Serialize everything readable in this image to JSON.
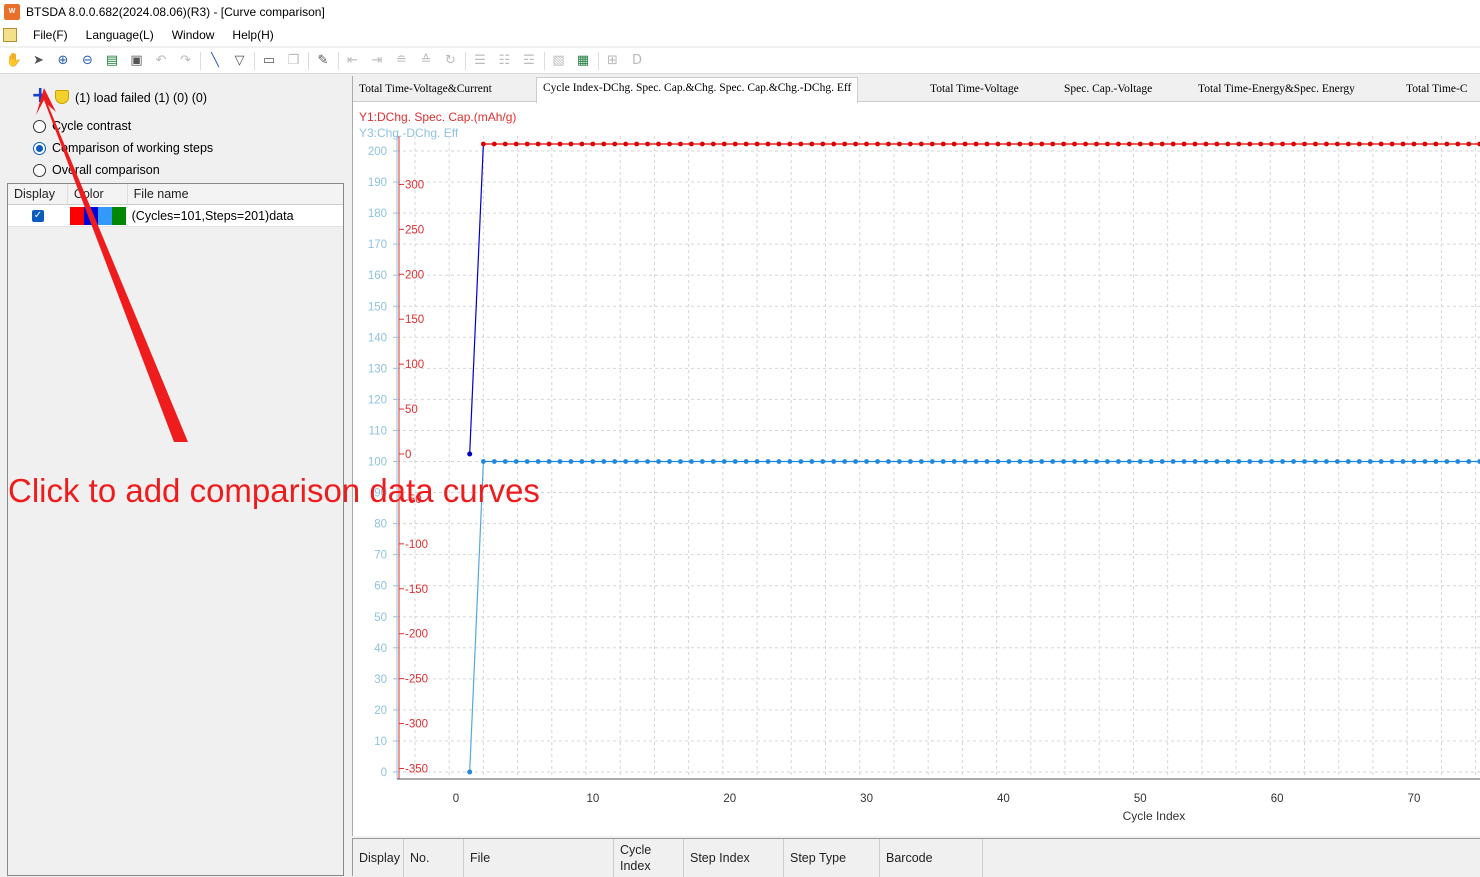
{
  "window": {
    "title": "BTSDA 8.0.0.682(2024.08.06)(R3) - [Curve comparison]",
    "app_icon": "app-logo-icon"
  },
  "menu": [
    "File(F)",
    "Language(L)",
    "Window",
    "Help(H)"
  ],
  "toolbar": {
    "icons": [
      "hand-icon",
      "pointer-icon",
      "zoom-in-icon",
      "zoom-out-icon",
      "rst-icon",
      "export-icon",
      "undo-icon",
      "redo-icon",
      "line-tool-icon",
      "filter-icon",
      "open-folder-icon",
      "save-icon",
      "wrench-icon",
      "arrow-left-icon",
      "arrow-right-icon",
      "step-icon",
      "step-alt-icon",
      "refresh-icon",
      "list-icon",
      "list-alt-icon",
      "list-detail-icon",
      "image-icon",
      "excel-icon",
      "settings-grid-icon",
      "d-icon"
    ]
  },
  "left": {
    "load_status": "(1) load failed (1) (0) (0)",
    "radios": [
      {
        "label": "Cycle contrast",
        "checked": false
      },
      {
        "label": "Comparison of working steps",
        "checked": true
      },
      {
        "label": "Overall comparison",
        "checked": false
      }
    ],
    "file_table": {
      "headers": [
        "Display",
        "Color",
        "File name"
      ],
      "rows": [
        {
          "display": true,
          "colors": [
            "#ff0000",
            "#0000dd",
            "#3399ff",
            "#008800"
          ],
          "file": "(Cycles=101,Steps=201)data"
        }
      ]
    }
  },
  "tabs": [
    "Total Time-Voltage&Current",
    "Cycle Index-DChg. Spec. Cap.&Chg. Spec. Cap.&Chg.-DChg. Eff",
    "Total Time-Voltage",
    "Spec. Cap.-Voltage",
    "Total Time-Energy&Spec. Energy",
    "Total Time-C"
  ],
  "active_tab": 1,
  "annotation": "Click to add comparison data curves",
  "chart_data": {
    "type": "line",
    "legend_y1": "Y1:DChg. Spec. Cap.(mAh/g)",
    "legend_y3": "Y3:Chg.-DChg. Eff",
    "xlabel": "Cycle Index",
    "x_ticks": [
      0,
      10,
      20,
      30,
      40,
      50,
      60,
      70
    ],
    "xlim": [
      -3,
      75
    ],
    "y3_ticks": [
      0,
      10,
      20,
      30,
      40,
      50,
      60,
      70,
      80,
      90,
      100,
      110,
      120,
      130,
      140,
      150,
      160,
      170,
      180,
      190,
      200
    ],
    "y3lim": [
      0,
      205
    ],
    "y1_ticks": [
      -350,
      -300,
      -250,
      -200,
      -150,
      -100,
      -50,
      0,
      50,
      100,
      150,
      200,
      250,
      300
    ],
    "y1lim": [
      -350,
      355
    ],
    "series": [
      {
        "axis": "y1",
        "color": "#dd0000",
        "x_start": 2,
        "x_end": 75,
        "step": 0.8,
        "value": 345,
        "first": {
          "x": 1,
          "value": 0
        }
      },
      {
        "axis": "y3",
        "color": "#2288dd",
        "x_start": 2,
        "x_end": 75,
        "step": 0.8,
        "value": 100,
        "first": {
          "x": 1,
          "value": 0
        }
      }
    ],
    "grid": true
  },
  "bottom_table": {
    "headers": [
      "Display",
      "No.",
      "File",
      "Cycle Index",
      "Step Index",
      "Step Type",
      "Barcode"
    ]
  }
}
